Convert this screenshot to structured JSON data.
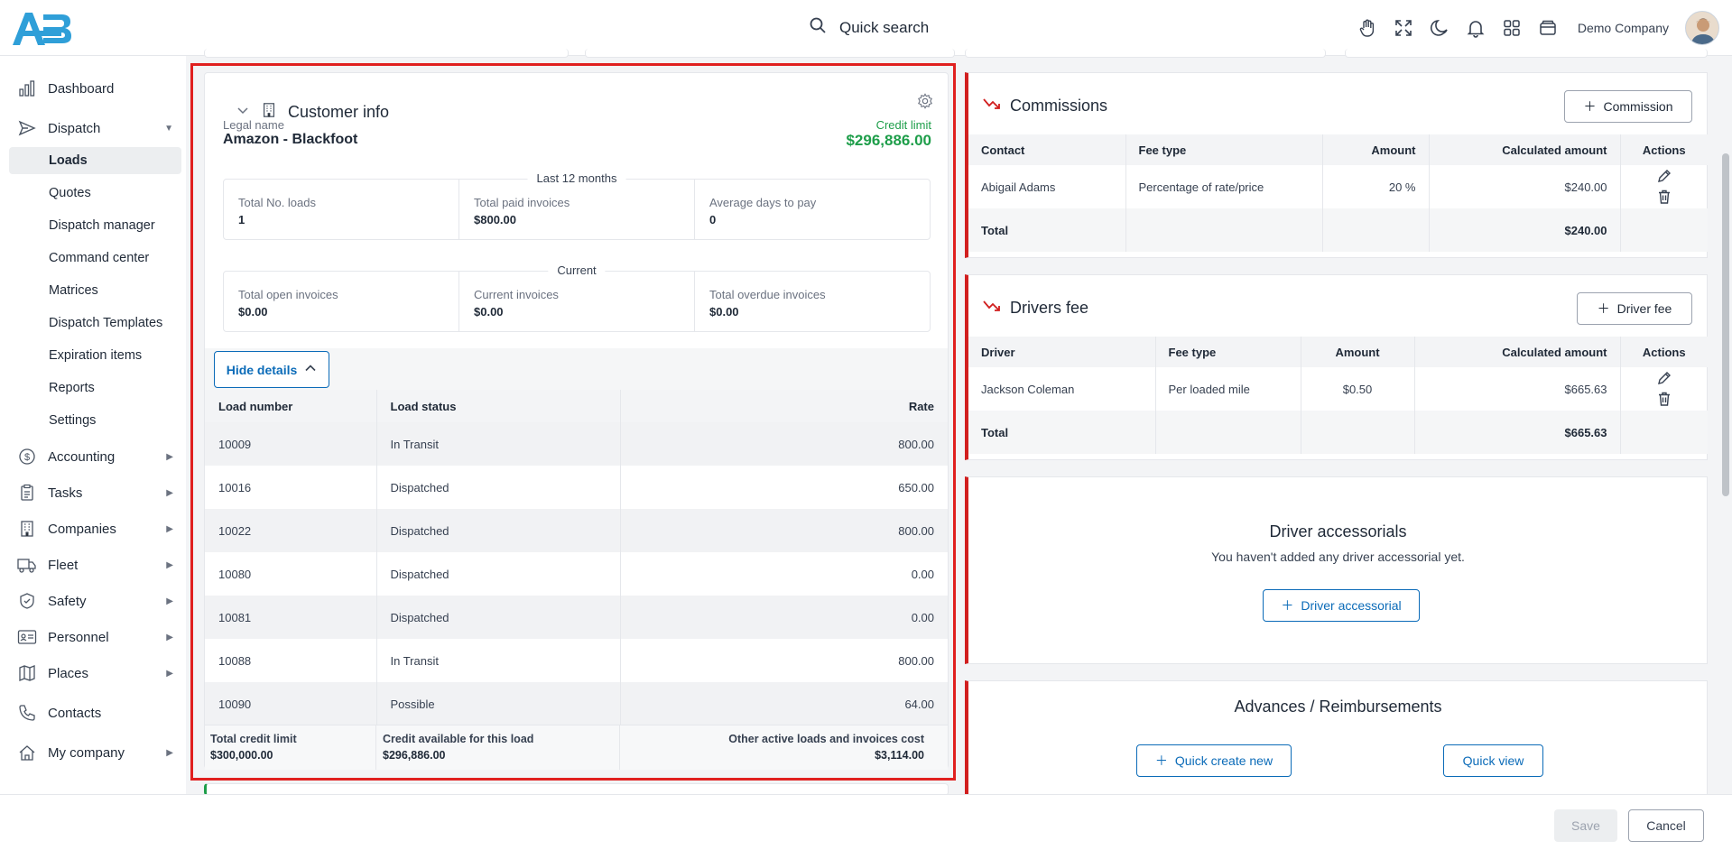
{
  "header": {
    "search_label": "Quick search",
    "company": "Demo Company",
    "icons": [
      "hand-icon",
      "fullscreen-icon",
      "moon-icon",
      "bell-icon",
      "apps-grid-icon",
      "wallet-icon"
    ]
  },
  "sidebar": {
    "dashboard": "Dashboard",
    "dispatch": "Dispatch",
    "dispatch_sub": [
      "Loads",
      "Quotes",
      "Dispatch manager",
      "Command center",
      "Matrices",
      "Dispatch Templates",
      "Expiration items",
      "Reports",
      "Settings"
    ],
    "accounting": "Accounting",
    "tasks": "Tasks",
    "companies": "Companies",
    "fleet": "Fleet",
    "safety": "Safety",
    "personnel": "Personnel",
    "places": "Places",
    "contacts": "Contacts",
    "my_company": "My company"
  },
  "customer_info": {
    "title": "Customer info",
    "legal_name_label": "Legal name",
    "legal_name": "Amazon - Blackfoot",
    "credit_limit_label": "Credit limit",
    "credit_limit": "$296,886.00",
    "credit_color": "#1e9e4a",
    "last12": {
      "legend": "Last 12 months",
      "items": [
        {
          "label": "Total No. loads",
          "value": "1"
        },
        {
          "label": "Total paid invoices",
          "value": "$800.00"
        },
        {
          "label": "Average days to pay",
          "value": "0"
        }
      ]
    },
    "current": {
      "legend": "Current",
      "items": [
        {
          "label": "Total open invoices",
          "value": "$0.00"
        },
        {
          "label": "Current invoices",
          "value": "$0.00"
        },
        {
          "label": "Total overdue invoices",
          "value": "$0.00"
        }
      ]
    },
    "hide_details": "Hide details",
    "table": {
      "headers": [
        "Load number",
        "Load status",
        "Rate"
      ],
      "rows": [
        [
          "10009",
          "In Transit",
          "800.00"
        ],
        [
          "10016",
          "Dispatched",
          "650.00"
        ],
        [
          "10022",
          "Dispatched",
          "800.00"
        ],
        [
          "10080",
          "Dispatched",
          "0.00"
        ],
        [
          "10081",
          "Dispatched",
          "0.00"
        ],
        [
          "10088",
          "In Transit",
          "800.00"
        ],
        [
          "10090",
          "Possible",
          "64.00"
        ]
      ]
    },
    "footer": {
      "total_credit_label": "Total credit limit",
      "total_credit": "$300,000.00",
      "available_label": "Credit available for this load",
      "available": "$296,886.00",
      "other_label": "Other active loads and invoices cost",
      "other": "$3,114.00"
    }
  },
  "commissions": {
    "title": "Commissions",
    "add_label": "Commission",
    "headers": [
      "Contact",
      "Fee type",
      "Amount",
      "Calculated amount",
      "Actions"
    ],
    "row": [
      "Abigail Adams",
      "Percentage of rate/price",
      "20 %",
      "$240.00"
    ],
    "total_label": "Total",
    "total": "$240.00"
  },
  "drivers_fee": {
    "title": "Drivers fee",
    "add_label": "Driver fee",
    "headers": [
      "Driver",
      "Fee type",
      "Amount",
      "Calculated amount",
      "Actions"
    ],
    "row": [
      "Jackson Coleman",
      "Per loaded mile",
      "$0.50",
      "$665.63"
    ],
    "total_label": "Total",
    "total": "$665.63"
  },
  "driver_accessorials": {
    "title": "Driver accessorials",
    "empty_text": "You haven't added any driver accessorial yet.",
    "add_label": "Driver accessorial"
  },
  "advances": {
    "title": "Advances / Reimbursements",
    "quick_create": "Quick create new",
    "quick_view": "Quick view"
  },
  "footer": {
    "save": "Save",
    "cancel": "Cancel"
  },
  "colors": {
    "accent": "#0b6bb8",
    "danger": "#d11f1f",
    "success": "#1e9e4a"
  }
}
